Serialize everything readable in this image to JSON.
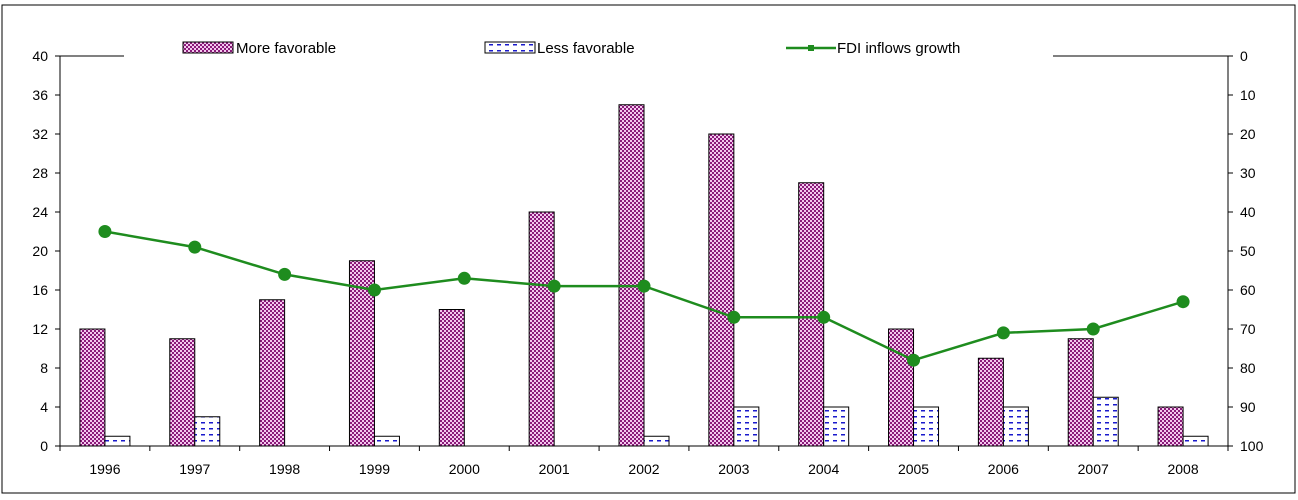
{
  "chart_data": {
    "type": "bar",
    "categories": [
      "1996",
      "1997",
      "1998",
      "1999",
      "2000",
      "2001",
      "2002",
      "2003",
      "2004",
      "2005",
      "2006",
      "2007",
      "2008"
    ],
    "series": [
      {
        "name": "More favorable",
        "axis": "left",
        "kind": "bar",
        "color": "#8b1a7a",
        "values": [
          12,
          11,
          15,
          19,
          14,
          24,
          35,
          32,
          27,
          12,
          9,
          11,
          4
        ]
      },
      {
        "name": "Less favorable",
        "axis": "left",
        "kind": "bar",
        "color": "#1a1acc",
        "values": [
          1,
          3,
          0,
          1,
          0,
          0,
          1,
          4,
          4,
          4,
          4,
          5,
          1
        ]
      },
      {
        "name": "FDI inflows growth",
        "axis": "right",
        "kind": "line",
        "color": "#1e8c1e",
        "values": [
          45,
          49,
          56,
          60,
          57,
          59,
          59,
          67,
          67,
          78,
          71,
          70,
          63
        ]
      }
    ],
    "y_left": {
      "ylim": [
        0,
        40
      ],
      "ticks": [
        "0",
        "4",
        "8",
        "12",
        "16",
        "20",
        "24",
        "28",
        "32",
        "36",
        "40"
      ]
    },
    "y_right": {
      "ylim": [
        0,
        100
      ],
      "inverted": true,
      "ticks": [
        "0",
        "10",
        "20",
        "30",
        "40",
        "50",
        "60",
        "70",
        "80",
        "90",
        "100"
      ]
    },
    "title": "",
    "xlabel": "",
    "ylabel": "",
    "grid": false,
    "legend_position": "top"
  }
}
